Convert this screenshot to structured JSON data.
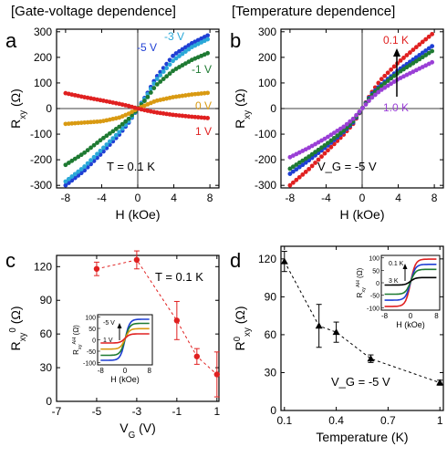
{
  "headers": {
    "left": "[Gate-voltage dependence]",
    "right": "[Temperature dependence]"
  },
  "chart_data": [
    {
      "panel": "a",
      "type": "scatter",
      "xlabel": "H (kOe)",
      "ylabel": "R_xy (Ω)",
      "xlim": [
        -9,
        9
      ],
      "ylim": [
        -310,
        310
      ],
      "xticks": [
        -8,
        -4,
        0,
        4,
        8
      ],
      "yticks": [
        -300,
        -200,
        -100,
        0,
        100,
        200,
        300
      ],
      "annotation": "T = 0.1 K",
      "series": [
        {
          "name": "-5 V",
          "color": "#1f3fd4",
          "x": [
            -8,
            -6,
            -4,
            -2,
            -1,
            0,
            1,
            2,
            4,
            6,
            8
          ],
          "y": [
            -300,
            -245,
            -175,
            -100,
            -55,
            0,
            55,
            120,
            210,
            255,
            290
          ]
        },
        {
          "name": "-3 V",
          "color": "#2aa8d8",
          "x": [
            -8,
            -6,
            -4,
            -2,
            -1,
            0,
            1,
            2,
            4,
            6,
            8
          ],
          "y": [
            -285,
            -230,
            -160,
            -90,
            -50,
            0,
            50,
            110,
            190,
            240,
            275
          ]
        },
        {
          "name": "-1 V",
          "color": "#1e7a32",
          "x": [
            -8,
            -6,
            -4,
            -2,
            -1,
            0,
            1,
            2,
            4,
            6,
            8
          ],
          "y": [
            -220,
            -175,
            -120,
            -70,
            -40,
            0,
            40,
            90,
            150,
            190,
            220
          ]
        },
        {
          "name": "0 V",
          "color": "#d99a12",
          "x": [
            -8,
            -6,
            -4,
            -2,
            -1,
            0,
            1,
            2,
            4,
            6,
            8
          ],
          "y": [
            -60,
            -55,
            -50,
            -35,
            -20,
            0,
            15,
            30,
            45,
            55,
            62
          ]
        },
        {
          "name": "1 V",
          "color": "#e02020",
          "x": [
            -8,
            -6,
            -4,
            -2,
            -1,
            0,
            1,
            2,
            4,
            6,
            8
          ],
          "y": [
            60,
            45,
            32,
            18,
            10,
            0,
            -8,
            -15,
            -25,
            -32,
            -38
          ]
        }
      ]
    },
    {
      "panel": "b",
      "type": "scatter",
      "xlabel": "H (kOe)",
      "ylabel": "R_xy (Ω)",
      "xlim": [
        -9,
        9
      ],
      "ylim": [
        -310,
        310
      ],
      "xticks": [
        -8,
        -4,
        0,
        4,
        8
      ],
      "yticks": [
        -300,
        -200,
        -100,
        0,
        100,
        200,
        300
      ],
      "annotation": "V_G = -5 V",
      "arrow_top": "0.1 K",
      "arrow_bottom": "1.0 K",
      "series": [
        {
          "name": "0.1 K",
          "color": "#e02020",
          "x": [
            -8,
            -6,
            -4,
            -2,
            -1,
            0,
            1,
            2,
            4,
            6,
            8
          ],
          "y": [
            -300,
            -240,
            -170,
            -100,
            -60,
            0,
            60,
            110,
            180,
            240,
            298
          ]
        },
        {
          "name": "",
          "color": "#1f3fd4",
          "x": [
            -8,
            -6,
            -4,
            -2,
            -1,
            0,
            1,
            2,
            4,
            6,
            8
          ],
          "y": [
            -255,
            -205,
            -150,
            -90,
            -55,
            0,
            55,
            90,
            150,
            200,
            250
          ]
        },
        {
          "name": "",
          "color": "#1e7a32",
          "x": [
            -8,
            -6,
            -4,
            -2,
            -1,
            0,
            1,
            2,
            4,
            6,
            8
          ],
          "y": [
            -235,
            -190,
            -140,
            -85,
            -50,
            0,
            50,
            85,
            140,
            185,
            230
          ]
        },
        {
          "name": "1.0 K",
          "color": "#9a3fd6",
          "x": [
            -8,
            -6,
            -4,
            -2,
            -1,
            0,
            1,
            2,
            4,
            6,
            8
          ],
          "y": [
            -190,
            -155,
            -115,
            -70,
            -40,
            0,
            40,
            70,
            115,
            150,
            185
          ]
        }
      ]
    },
    {
      "panel": "c",
      "type": "scatter",
      "xlabel": "V_G (V)",
      "ylabel": "R_xy^0 (Ω)",
      "xlim": [
        -7,
        1.1
      ],
      "ylim": [
        0,
        130
      ],
      "xticks": [
        -7,
        -5,
        -3,
        -1,
        1
      ],
      "yticks": [
        0,
        30,
        60,
        90,
        120
      ],
      "annotation": "T = 0.1 K",
      "series": [
        {
          "name": "",
          "color": "#e02020",
          "x": [
            -5,
            -3,
            -1,
            0,
            1
          ],
          "y": [
            118,
            126,
            72,
            40,
            24
          ],
          "err": [
            6,
            8,
            17,
            7,
            20
          ]
        }
      ],
      "inset": {
        "xlabel": "H (kOe)",
        "ylabel": "R_xy^AH (Ω)",
        "xticks": [
          -8,
          0,
          8
        ],
        "yticks": [
          -100,
          -50,
          0,
          50,
          100
        ],
        "arrow_top": "-5 V",
        "arrow_bottom": "1 V"
      }
    },
    {
      "panel": "d",
      "type": "scatter",
      "xlabel": "Temperature (K)",
      "ylabel": "R^0_xy (Ω)",
      "xlim": [
        0.08,
        1.02
      ],
      "ylim": [
        0,
        130
      ],
      "xticks": [
        0.1,
        0.4,
        0.7,
        1.0
      ],
      "yticks": [
        0,
        30,
        60,
        90,
        120
      ],
      "annotation": "V_G = -5 V",
      "series": [
        {
          "name": "",
          "color": "#000000",
          "x": [
            0.1,
            0.3,
            0.4,
            0.6,
            1.0
          ],
          "y": [
            118,
            67,
            62,
            41,
            22
          ],
          "err": [
            8,
            17,
            8,
            3,
            2
          ]
        }
      ],
      "inset": {
        "xlabel": "H (kOe)",
        "ylabel": "R_xy^AH (Ω)",
        "xticks": [
          -8,
          0,
          8
        ],
        "yticks": [
          -100,
          -50,
          0,
          50,
          100
        ],
        "arrow_top": "0.1 K",
        "arrow_bottom": "3 K"
      }
    }
  ],
  "panel_letters": [
    "a",
    "b",
    "c",
    "d"
  ]
}
